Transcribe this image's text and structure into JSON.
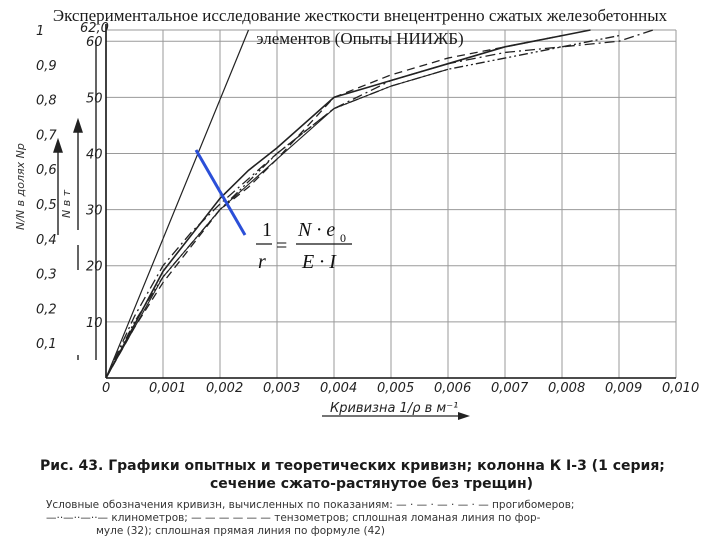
{
  "slide": {
    "title": "Экспериментальное исследование жесткости внецентренно сжатых железобетонных элементов (Опыты НИИЖБ)"
  },
  "chart_data": {
    "type": "line",
    "x_axis": {
      "label": "Кривизна 1/ρ в м⁻¹",
      "range": [
        0,
        0.01
      ],
      "ticks": [
        "0",
        "0,001",
        "0,002",
        "0,003",
        "0,004",
        "0,005",
        "0,006",
        "0,007",
        "0,008",
        "0,009",
        "0,010"
      ]
    },
    "y_axis_left": {
      "label": "N/N в долях Nр",
      "range": [
        0,
        1
      ],
      "ticks": [
        "0,1",
        "0,2",
        "0,3",
        "0,4",
        "0,5",
        "0,6",
        "0,7",
        "0,8",
        "0,9",
        "1"
      ]
    },
    "y_axis_right": {
      "label": "N в т",
      "range": [
        0,
        62.0
      ],
      "ticks": [
        "10",
        "20",
        "30",
        "40",
        "50",
        "60",
        "62,0"
      ]
    },
    "grid": true,
    "series": [
      {
        "style": "dash-dot",
        "points": [
          [
            0,
            0
          ],
          [
            0.0005,
            11
          ],
          [
            0.001,
            20
          ],
          [
            0.0015,
            26
          ],
          [
            0.002,
            31
          ],
          [
            0.003,
            40
          ],
          [
            0.004,
            48
          ],
          [
            0.005,
            53
          ],
          [
            0.006,
            56
          ],
          [
            0.007,
            58
          ],
          [
            0.008,
            59
          ],
          [
            0.009,
            60
          ],
          [
            0.0096,
            62
          ]
        ]
      },
      {
        "style": "dash-dot-dot",
        "points": [
          [
            0,
            0
          ],
          [
            0.0005,
            10
          ],
          [
            0.001,
            18
          ],
          [
            0.002,
            30
          ],
          [
            0.003,
            40
          ],
          [
            0.004,
            48
          ],
          [
            0.005,
            52
          ],
          [
            0.006,
            55
          ],
          [
            0.007,
            57
          ],
          [
            0.008,
            59
          ],
          [
            0.009,
            61
          ]
        ]
      },
      {
        "style": "dashed",
        "points": [
          [
            0,
            0
          ],
          [
            0.0005,
            9
          ],
          [
            0.001,
            17
          ],
          [
            0.002,
            30
          ],
          [
            0.0025,
            34
          ],
          [
            0.003,
            39
          ],
          [
            0.004,
            50
          ],
          [
            0.005,
            54
          ],
          [
            0.006,
            57
          ],
          [
            0.007,
            59
          ],
          [
            0.008,
            61
          ]
        ]
      },
      {
        "style": "solid",
        "points": [
          [
            0,
            0
          ],
          [
            0.001,
            19
          ],
          [
            0.002,
            32
          ],
          [
            0.0025,
            37
          ],
          [
            0.003,
            41
          ],
          [
            0.004,
            50
          ],
          [
            0.005,
            53
          ],
          [
            0.006,
            56
          ],
          [
            0.007,
            59
          ],
          [
            0.008,
            61
          ],
          [
            0.0085,
            62
          ]
        ]
      },
      {
        "style": "solid-thin",
        "points": [
          [
            0,
            0
          ],
          [
            0.001,
            18
          ],
          [
            0.002,
            30
          ],
          [
            0.003,
            39
          ],
          [
            0.004,
            48
          ],
          [
            0.005,
            52
          ],
          [
            0.006,
            55
          ]
        ]
      },
      {
        "style": "solid-straight",
        "points": [
          [
            0,
            0
          ],
          [
            0.0025,
            62
          ]
        ]
      }
    ],
    "formula": {
      "lhs_num": "1",
      "lhs_den": "r",
      "rhs_num": "N · e",
      "rhs_sub": "0",
      "rhs_den": "E · I"
    },
    "caption_line1": "Рис. 43. Графики опытных и теоретических кривизн; колонна К I-3 (1 серия;",
    "caption_line2": "сечение сжато-растянутое без трещин)",
    "legend_line1": "Условные обозначения кривизн, вычисленных по показаниям: — · — · — · — · — прогибомеров;",
    "legend_line2": "—··—··—··— клинометров; — — — — — — тензометров; сплошная ломаная линия по фор-",
    "legend_line3": "муле (32); сплошная прямая линия по формуле (42)"
  }
}
